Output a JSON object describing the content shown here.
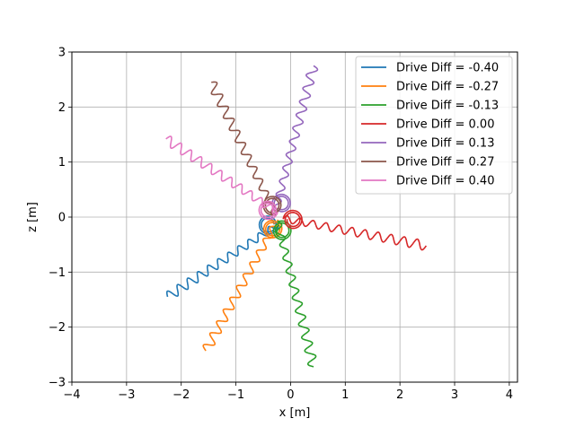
{
  "chart_data": {
    "type": "line",
    "title": "",
    "xlabel": "x [m]",
    "ylabel": "z [m]",
    "xlim": [
      -4,
      4.15
    ],
    "ylim": [
      -3,
      3
    ],
    "xticks": [
      "−4",
      "−3",
      "−2",
      "−1",
      "0",
      "1",
      "2",
      "3",
      "4"
    ],
    "yticks": [
      "−3",
      "−2",
      "−1",
      "0",
      "1",
      "2",
      "3"
    ],
    "grid": true,
    "legend_position": "top-right",
    "series": [
      {
        "name": "Drive Diff = -0.40",
        "color": "#1f77b4",
        "end": [
          -2.25,
          -1.45
        ]
      },
      {
        "name": "Drive Diff = -0.27",
        "color": "#ff7f0e",
        "end": [
          -1.55,
          -2.43
        ]
      },
      {
        "name": "Drive Diff = -0.13",
        "color": "#2ca02c",
        "end": [
          0.42,
          -2.72
        ]
      },
      {
        "name": "Drive Diff = 0.00",
        "color": "#d62728",
        "end": [
          2.48,
          -0.52
        ]
      },
      {
        "name": "Drive Diff = 0.13",
        "color": "#9467bd",
        "end": [
          0.42,
          2.75
        ]
      },
      {
        "name": "Drive Diff = 0.27",
        "color": "#8c564b",
        "end": [
          -1.45,
          2.45
        ]
      },
      {
        "name": "Drive Diff = 0.40",
        "color": "#e377c2",
        "end": [
          -2.28,
          1.42
        ]
      }
    ]
  }
}
